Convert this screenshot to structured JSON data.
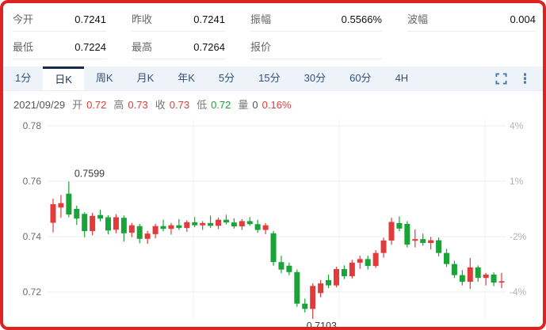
{
  "colors": {
    "up": "#e23b3b",
    "down": "#1aa337",
    "accent": "#31517e",
    "tab_active_border": "#152a4e",
    "frame_border": "#dd2222",
    "grid": "#ececec",
    "grid_vertical": "#f1f1f1",
    "left_axis_text": "#6b6b6b",
    "right_axis_text": "#b3b3b3",
    "annotation_text": "#3a3a3a"
  },
  "stats": {
    "rows": [
      [
        {
          "name": "stat-today-open",
          "label": "今开",
          "value": "0.7241"
        },
        {
          "name": "stat-prev-close",
          "label": "昨收",
          "value": "0.7241"
        },
        {
          "name": "stat-amplitude",
          "label": "振幅",
          "value": "0.5566%"
        },
        {
          "name": "stat-range",
          "label": "波幅",
          "value": "0.004"
        }
      ],
      [
        {
          "name": "stat-low",
          "label": "最低",
          "value": "0.7224"
        },
        {
          "name": "stat-high",
          "label": "最高",
          "value": "0.7264"
        },
        {
          "name": "stat-quote",
          "label": "报价",
          "value": ""
        },
        null
      ]
    ]
  },
  "tabs": {
    "items": [
      {
        "name": "tab-1min",
        "label": "1分"
      },
      {
        "name": "tab-daily",
        "label": "日K"
      },
      {
        "name": "tab-weekly",
        "label": "周K"
      },
      {
        "name": "tab-monthly",
        "label": "月K"
      },
      {
        "name": "tab-yearly",
        "label": "年K"
      },
      {
        "name": "tab-5min",
        "label": "5分"
      },
      {
        "name": "tab-15min",
        "label": "15分"
      },
      {
        "name": "tab-30min",
        "label": "30分"
      },
      {
        "name": "tab-60min",
        "label": "60分"
      },
      {
        "name": "tab-4h",
        "label": "4H"
      }
    ],
    "active_index": 1
  },
  "infobar": {
    "date": "2021/09/29",
    "fields": [
      {
        "name": "info-open",
        "label": "开",
        "value": "0.72",
        "tone": "up"
      },
      {
        "name": "info-high",
        "label": "高",
        "value": "0.73",
        "tone": "up"
      },
      {
        "name": "info-close",
        "label": "收",
        "value": "0.73",
        "tone": "up"
      },
      {
        "name": "info-low",
        "label": "低",
        "value": "0.72",
        "tone": "down"
      },
      {
        "name": "info-volume",
        "label": "量",
        "value": "0",
        "tone": "plain"
      }
    ],
    "change": {
      "value": "0.16%",
      "tone": "up"
    }
  },
  "chart_data": {
    "type": "candlestick",
    "title": "",
    "xlabel": "",
    "ylabel": "",
    "grid": true,
    "legend": false,
    "left_axis": {
      "labels": [
        "0.78",
        "0.76",
        "0.74",
        "0.72"
      ],
      "values": [
        0.78,
        0.76,
        0.74,
        0.72
      ]
    },
    "right_axis": {
      "labels": [
        "4%",
        "1%",
        "-2%",
        "-4%"
      ]
    },
    "ylim": [
      0.706,
      0.784
    ],
    "annotations": [
      {
        "text": "0.7599",
        "price": 0.7599,
        "candle_index": 2,
        "position": "above"
      },
      {
        "text": "0.7103",
        "price": 0.7103,
        "candle_index": 33,
        "position": "below"
      }
    ],
    "candles": [
      [
        0.745,
        0.7537,
        0.7415,
        0.7517
      ],
      [
        0.7505,
        0.755,
        0.7468,
        0.7521
      ],
      [
        0.7555,
        0.7599,
        0.747,
        0.748
      ],
      [
        0.75,
        0.7512,
        0.7442,
        0.7465
      ],
      [
        0.7482,
        0.7488,
        0.7398,
        0.742
      ],
      [
        0.742,
        0.7486,
        0.7405,
        0.7475
      ],
      [
        0.7478,
        0.7497,
        0.7455,
        0.7465
      ],
      [
        0.747,
        0.7477,
        0.7408,
        0.7422
      ],
      [
        0.7425,
        0.7481,
        0.7412,
        0.747
      ],
      [
        0.7468,
        0.7476,
        0.7382,
        0.7412
      ],
      [
        0.7414,
        0.7449,
        0.7398,
        0.7441
      ],
      [
        0.7438,
        0.7446,
        0.7376,
        0.7392
      ],
      [
        0.7392,
        0.7421,
        0.7374,
        0.7411
      ],
      [
        0.7409,
        0.7446,
        0.7394,
        0.7438
      ],
      [
        0.7438,
        0.7461,
        0.7419,
        0.7428
      ],
      [
        0.7428,
        0.7449,
        0.7407,
        0.7441
      ],
      [
        0.7441,
        0.7463,
        0.7424,
        0.7431
      ],
      [
        0.7431,
        0.7459,
        0.7417,
        0.7452
      ],
      [
        0.7452,
        0.7471,
        0.7434,
        0.7441
      ],
      [
        0.7441,
        0.7456,
        0.7424,
        0.7449
      ],
      [
        0.7449,
        0.7476,
        0.7431,
        0.7439
      ],
      [
        0.7439,
        0.7469,
        0.7427,
        0.7461
      ],
      [
        0.7461,
        0.7479,
        0.7444,
        0.7451
      ],
      [
        0.7451,
        0.7466,
        0.7429,
        0.7437
      ],
      [
        0.7437,
        0.7463,
        0.7424,
        0.7456
      ],
      [
        0.7456,
        0.7471,
        0.7439,
        0.7445
      ],
      [
        0.7445,
        0.7461,
        0.7414,
        0.7424
      ],
      [
        0.7424,
        0.7449,
        0.7409,
        0.7441
      ],
      [
        0.7412,
        0.742,
        0.7295,
        0.7308
      ],
      [
        0.7308,
        0.7331,
        0.7268,
        0.7281
      ],
      [
        0.7295,
        0.7306,
        0.7261,
        0.7272
      ],
      [
        0.7272,
        0.7281,
        0.7147,
        0.7158
      ],
      [
        0.7158,
        0.7176,
        0.7126,
        0.7139
      ],
      [
        0.7139,
        0.7231,
        0.7103,
        0.7222
      ],
      [
        0.7196,
        0.7243,
        0.7181,
        0.7231
      ],
      [
        0.7243,
        0.7263,
        0.7214,
        0.7224
      ],
      [
        0.7224,
        0.7291,
        0.7217,
        0.7283
      ],
      [
        0.7283,
        0.7296,
        0.7247,
        0.7257
      ],
      [
        0.7257,
        0.7316,
        0.7249,
        0.7306
      ],
      [
        0.7306,
        0.7331,
        0.7284,
        0.7319
      ],
      [
        0.7319,
        0.7331,
        0.7281,
        0.7294
      ],
      [
        0.7294,
        0.7351,
        0.7287,
        0.7341
      ],
      [
        0.7341,
        0.7396,
        0.7324,
        0.7386
      ],
      [
        0.7386,
        0.7468,
        0.7371,
        0.7453
      ],
      [
        0.7449,
        0.7473,
        0.7419,
        0.7429
      ],
      [
        0.7446,
        0.7456,
        0.7361,
        0.7371
      ],
      [
        0.7385,
        0.7426,
        0.7361,
        0.7391
      ],
      [
        0.7391,
        0.7411,
        0.7367,
        0.7377
      ],
      [
        0.7377,
        0.7399,
        0.7354,
        0.7387
      ],
      [
        0.7387,
        0.7397,
        0.7329,
        0.7341
      ],
      [
        0.7341,
        0.7356,
        0.7291,
        0.7301
      ],
      [
        0.7301,
        0.7313,
        0.7251,
        0.7261
      ],
      [
        0.7261,
        0.7279,
        0.7224,
        0.7237
      ],
      [
        0.7237,
        0.7323,
        0.7211,
        0.7289
      ],
      [
        0.7289,
        0.7296,
        0.7237,
        0.7251
      ],
      [
        0.7251,
        0.7269,
        0.7224,
        0.7263
      ],
      [
        0.7263,
        0.7271,
        0.7221,
        0.7234
      ],
      [
        0.7234,
        0.7269,
        0.7214,
        0.7239
      ]
    ]
  }
}
